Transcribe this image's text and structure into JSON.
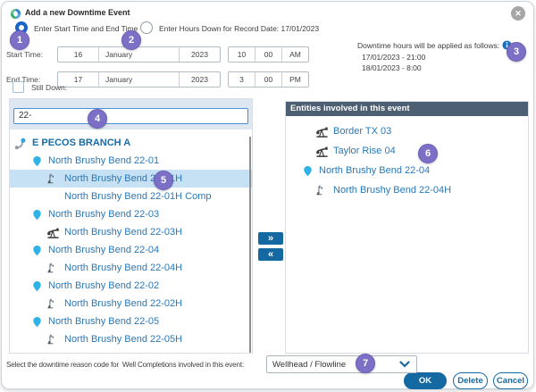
{
  "dialog": {
    "title": "Add a new Downtime Event"
  },
  "modes": {
    "options": [
      {
        "label": "Enter Start Time and End Time",
        "selected": true
      },
      {
        "label": "Enter Hours Down for Record Date: 17/01/2023",
        "selected": false
      }
    ]
  },
  "times": {
    "start": {
      "label": "Start Time:",
      "day": "16",
      "month": "January",
      "year": "2023",
      "hour": "10",
      "minute": "00",
      "meridiem": "AM"
    },
    "end": {
      "label": "End Time:",
      "day": "17",
      "month": "January",
      "year": "2023",
      "hour": "3",
      "minute": "00",
      "meridiem": "PM"
    }
  },
  "applied": {
    "heading": "Downtime hours will be applied as follows:",
    "lines": [
      "17/01/2023 - 21:00",
      "18/01/2023 - 8:00"
    ]
  },
  "still_down": {
    "label": "Still Down:",
    "checked": false
  },
  "search": {
    "value": "22-"
  },
  "tree": {
    "items": [
      {
        "icon": "branch",
        "label": "E PECOS BRANCH A",
        "level": 0,
        "bold": true,
        "selected": false
      },
      {
        "icon": "pin",
        "label": "North Brushy Bend 22-01",
        "level": 1,
        "bold": false,
        "selected": false
      },
      {
        "icon": "wellbore",
        "label": "North Brushy Bend 22-01H",
        "level": 2,
        "bold": false,
        "selected": true
      },
      {
        "icon": "none",
        "label": "North Brushy Bend 22-01H Comp",
        "level": 2,
        "bold": false,
        "selected": false
      },
      {
        "icon": "pin",
        "label": "North Brushy Bend 22-03",
        "level": 1,
        "bold": false,
        "selected": false
      },
      {
        "icon": "pumpjack",
        "label": "North Brushy Bend 22-03H",
        "level": 2,
        "bold": false,
        "selected": false
      },
      {
        "icon": "pin",
        "label": "North Brushy Bend 22-04",
        "level": 1,
        "bold": false,
        "selected": false
      },
      {
        "icon": "wellbore",
        "label": "North Brushy Bend 22-04H",
        "level": 2,
        "bold": false,
        "selected": false
      },
      {
        "icon": "pin",
        "label": "North Brushy Bend 22-02",
        "level": 1,
        "bold": false,
        "selected": false
      },
      {
        "icon": "wellbore",
        "label": "North Brushy Bend 22-02H",
        "level": 2,
        "bold": false,
        "selected": false
      },
      {
        "icon": "pin",
        "label": "North Brushy Bend 22-05",
        "level": 1,
        "bold": false,
        "selected": false
      },
      {
        "icon": "wellbore",
        "label": "North Brushy Bend 22-05H",
        "level": 2,
        "bold": false,
        "selected": false
      }
    ]
  },
  "transfer": {
    "add": "»",
    "remove": "«"
  },
  "entities_panel": {
    "header": "Entities involved in this event",
    "items": [
      {
        "icon": "pumpjack",
        "label": "Border TX 03",
        "level": 2
      },
      {
        "icon": "pumpjack",
        "label": "Taylor Rise 04",
        "level": 2
      },
      {
        "icon": "pin",
        "label": "North Brushy Bend 22-04",
        "level": 1
      },
      {
        "icon": "wellbore",
        "label": "North Brushy Bend 22-04H",
        "level": 2
      }
    ]
  },
  "reason": {
    "prefix": "Select the downtime reason code for",
    "entity": "Well Completions involved in this event:",
    "selected": "Wellhead / Flowline"
  },
  "footer": {
    "ok": "OK",
    "delete": "Delete",
    "cancel": "Cancel"
  },
  "badges": [
    "1",
    "2",
    "3",
    "4",
    "5",
    "6",
    "7"
  ],
  "colors": {
    "accent": "#1569a3",
    "header": "#4d5f72",
    "badge": "#7b6fc6",
    "selection": "#c7e1f4",
    "pin": "#2fb3e6"
  }
}
